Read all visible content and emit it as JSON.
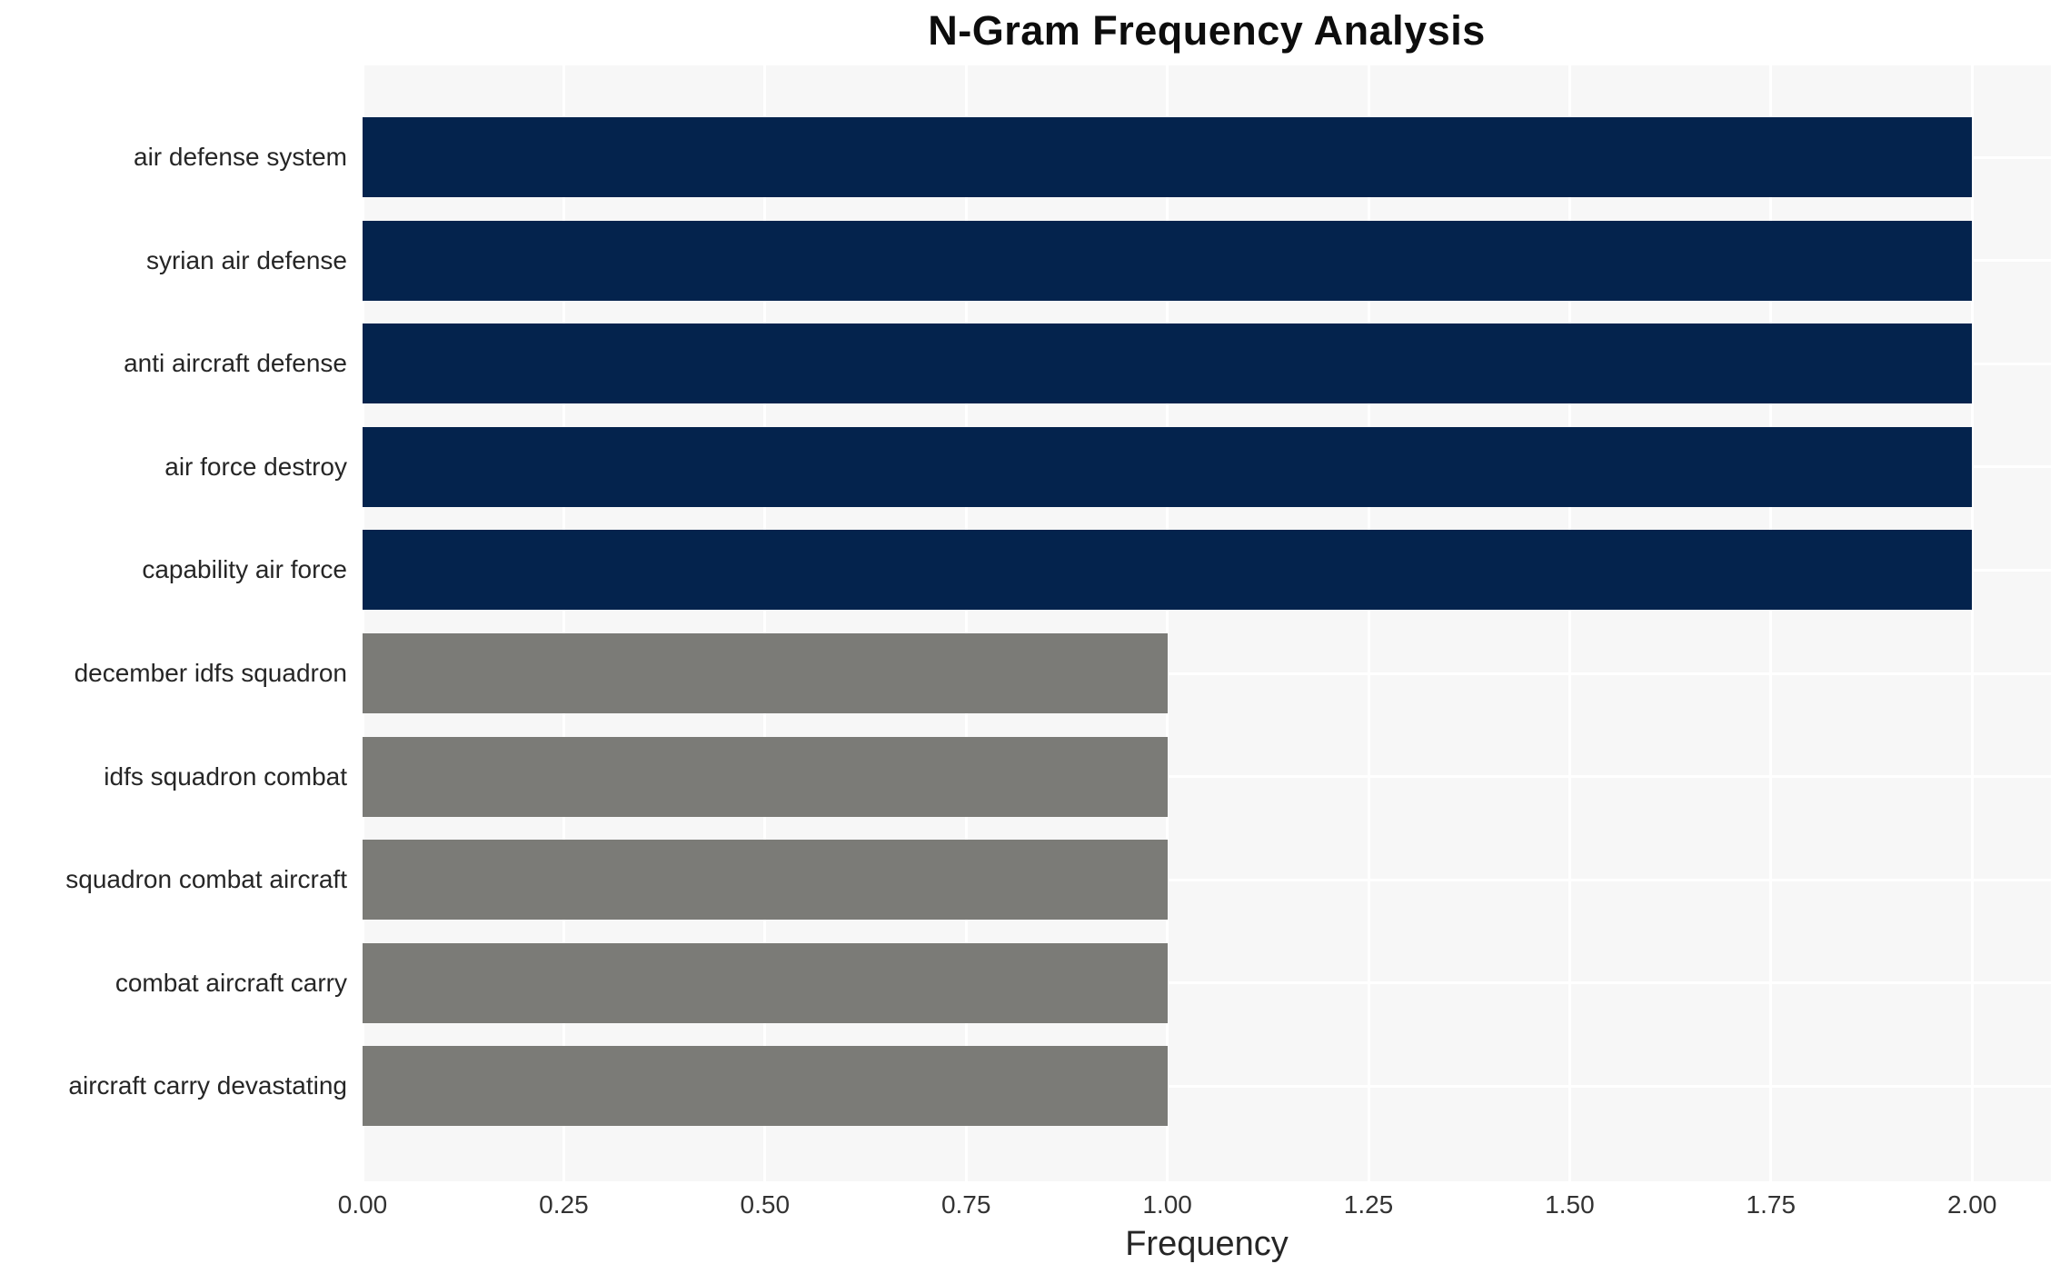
{
  "chart_data": {
    "type": "bar",
    "orientation": "horizontal",
    "title": "N-Gram Frequency Analysis",
    "xlabel": "Frequency",
    "ylabel": "",
    "categories": [
      "air defense system",
      "syrian air defense",
      "anti aircraft defense",
      "air force destroy",
      "capability air force",
      "december idfs squadron",
      "idfs squadron combat",
      "squadron combat aircraft",
      "combat aircraft carry",
      "aircraft carry devastating"
    ],
    "values": [
      2,
      2,
      2,
      2,
      2,
      1,
      1,
      1,
      1,
      1
    ],
    "bar_colors": [
      "#04234d",
      "#04234d",
      "#04234d",
      "#04234d",
      "#04234d",
      "#7b7b77",
      "#7b7b77",
      "#7b7b77",
      "#7b7b77",
      "#7b7b77"
    ],
    "xlim": [
      0,
      2.098
    ],
    "xticks": [
      {
        "value": 0.0,
        "label": "0.00"
      },
      {
        "value": 0.25,
        "label": "0.25"
      },
      {
        "value": 0.5,
        "label": "0.50"
      },
      {
        "value": 0.75,
        "label": "0.75"
      },
      {
        "value": 1.0,
        "label": "1.00"
      },
      {
        "value": 1.25,
        "label": "1.25"
      },
      {
        "value": 1.5,
        "label": "1.50"
      },
      {
        "value": 1.75,
        "label": "1.75"
      },
      {
        "value": 2.0,
        "label": "2.00"
      }
    ],
    "grid": true,
    "legend": null,
    "colors": {
      "plot_background": "#f7f7f7",
      "gridline": "#ffffff",
      "bar_high": "#04234d",
      "bar_low": "#7b7b77",
      "text": "#262626",
      "title_text": "#0d0d0d"
    }
  }
}
